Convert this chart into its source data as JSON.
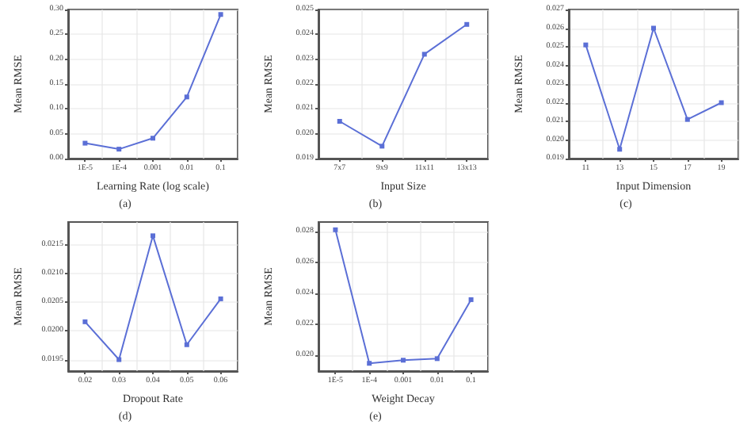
{
  "chart_data": [
    {
      "type": "line",
      "xlabel": "Learning Rate (log scale)",
      "ylabel": "Mean RMSE",
      "annotations": [
        "(a)"
      ],
      "categories": [
        "1E-5",
        "1E-4",
        "0.001",
        "0.01",
        "0.1"
      ],
      "series": [
        {
          "color": "#5b6fd6",
          "values": [
            0.031,
            0.019,
            0.041,
            0.124,
            0.29
          ]
        }
      ],
      "ylim": [
        0,
        0.3
      ],
      "yticks": [
        {
          "value": 0,
          "label": "0.00"
        },
        0.05,
        {
          "value": 0.1,
          "label": "0.10"
        },
        0.15,
        {
          "value": 0.2,
          "label": "0.20"
        },
        0.25,
        {
          "value": 0.3,
          "label": "0.30"
        }
      ],
      "grid": true,
      "marker": "square",
      "line_style": "solid"
    },
    {
      "type": "line",
      "xlabel": "Input Size",
      "ylabel": "Mean RMSE",
      "annotations": [
        "(b)"
      ],
      "categories": [
        "7x7",
        "9x9",
        "11x11",
        "13x13"
      ],
      "series": [
        {
          "color": "#5b6fd6",
          "values": [
            0.0205,
            0.0195,
            0.0232,
            0.0244
          ]
        }
      ],
      "ylim": [
        0.019,
        0.025
      ],
      "yticks": [
        0.019,
        {
          "value": 0.02,
          "label": "0.020"
        },
        0.021,
        0.022,
        0.023,
        0.024,
        0.025
      ],
      "grid": true,
      "marker": "square",
      "line_style": "solid"
    },
    {
      "type": "line",
      "xlabel": "Input Dimension",
      "ylabel": "Mean RMSE",
      "annotations": [
        "(c)"
      ],
      "categories": [
        "11",
        "13",
        "15",
        "17",
        "19"
      ],
      "series": [
        {
          "color": "#5b6fd6",
          "values": [
            0.0251,
            0.0195,
            0.026,
            0.0211,
            0.022
          ]
        }
      ],
      "ylim": [
        0.019,
        0.027
      ],
      "yticks": [
        0.019,
        {
          "value": 0.02,
          "label": "0.020"
        },
        0.021,
        0.022,
        0.023,
        0.024,
        0.025,
        0.026,
        0.027
      ],
      "grid": true,
      "marker": "square",
      "line_style": "solid"
    },
    {
      "type": "line",
      "xlabel": "Dropout Rate",
      "ylabel": "Mean RMSE",
      "annotations": [
        "(d)"
      ],
      "categories": [
        "0.02",
        "0.03",
        "0.04",
        "0.05",
        "0.06"
      ],
      "series": [
        {
          "color": "#5b6fd6",
          "values": [
            0.02016,
            0.0195,
            0.02166,
            0.01976,
            0.02056
          ]
        }
      ],
      "ylim": [
        0.0193,
        0.0219
      ],
      "yticks": [
        0.0195,
        {
          "value": 0.02,
          "label": "0.0200"
        },
        0.0205,
        {
          "value": 0.021,
          "label": "0.0210"
        },
        0.0215
      ],
      "grid": true,
      "marker": "square",
      "line_style": "solid"
    },
    {
      "type": "line",
      "xlabel": "Weight Decay",
      "ylabel": "Mean RMSE",
      "annotations": [
        "(e)"
      ],
      "categories": [
        "1E-5",
        "1E-4",
        "0.001",
        "0.01",
        "0.1"
      ],
      "series": [
        {
          "color": "#5b6fd6",
          "values": [
            0.0281,
            0.0195,
            0.0197,
            0.0198,
            0.0236
          ]
        }
      ],
      "ylim": [
        0.019,
        0.0286
      ],
      "yticks": [
        {
          "value": 0.02,
          "label": "0.020"
        },
        0.022,
        0.024,
        0.026,
        {
          "value": 0.028,
          "label": "0.028"
        }
      ],
      "grid": true,
      "marker": "square",
      "line_style": "solid"
    }
  ]
}
